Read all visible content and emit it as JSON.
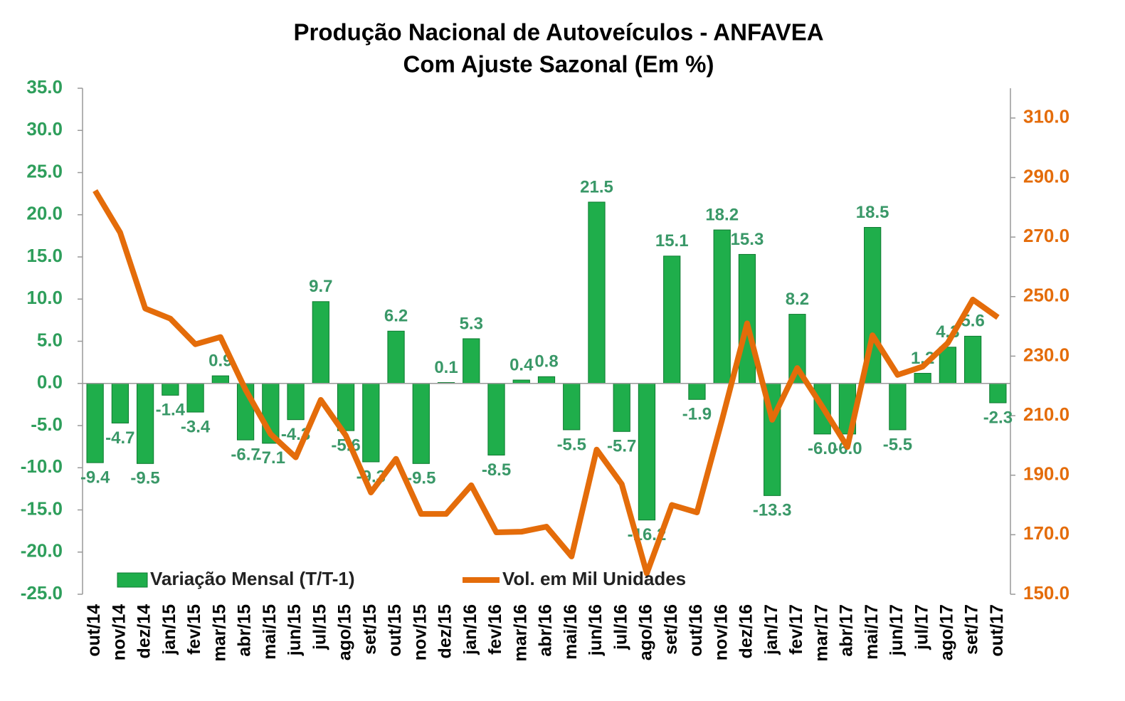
{
  "chart_data": {
    "type": "bar_line",
    "title": "Produção Nacional de Autoveículos - ANFAVEA",
    "subtitle": "Com Ajuste Sazonal (Em %)",
    "categories": [
      "out/14",
      "nov/14",
      "dez/14",
      "jan/15",
      "fev/15",
      "mar/15",
      "abr/15",
      "mai/15",
      "jun/15",
      "jul/15",
      "ago/15",
      "set/15",
      "out/15",
      "nov/15",
      "dez/15",
      "jan/16",
      "fev/16",
      "mar/16",
      "abr/16",
      "mai/16",
      "jun/16",
      "jul/16",
      "ago/16",
      "set/16",
      "out/16",
      "nov/16",
      "dez/16",
      "jan/17",
      "fev/17",
      "mar/17",
      "abr/17",
      "mai/17",
      "jun/17",
      "jul/17",
      "ago/17",
      "set/17",
      "out/17"
    ],
    "series": [
      {
        "name": "Variação Mensal (T/T-1)",
        "type": "bar",
        "color": "#1fae4b",
        "values": [
          -9.4,
          -4.7,
          -9.5,
          -1.4,
          -3.4,
          0.9,
          -6.7,
          -7.1,
          -4.3,
          9.7,
          -5.6,
          -9.3,
          6.2,
          -9.5,
          0.1,
          5.3,
          -8.5,
          0.4,
          0.8,
          -5.5,
          21.5,
          -5.7,
          -16.2,
          15.1,
          -1.9,
          18.2,
          15.3,
          -13.3,
          8.2,
          -6.0,
          -6.0,
          18.5,
          -5.5,
          1.2,
          4.3,
          5.6,
          -2.3
        ],
        "value_labels": [
          "-9.4",
          "-4.7",
          "-9.5",
          "-1.4",
          "-3.4",
          "0.9",
          "-6.7",
          "-7.1",
          "-4.3",
          "9.7",
          "-5.6",
          "-9.3",
          "6.2",
          "-9.5",
          "0.1",
          "5.3",
          "-8.5",
          "0.4",
          "0.8",
          "-5.5",
          "21.5",
          "-5.7",
          "-16.2",
          "15.1",
          "-1.9",
          "18.2",
          "15.3",
          "-13.3",
          "8.2",
          "-6.0",
          "-6.0",
          "18.5",
          "-5.5",
          "1.2",
          "4.3",
          "5.6",
          "-2.3"
        ]
      },
      {
        "name": "Vol. em Mil Unidades",
        "type": "line",
        "color": "#e46c0a",
        "axis": "y2",
        "values": [
          285.6,
          271.5,
          246,
          242.6,
          234,
          236.4,
          218.7,
          203.8,
          196,
          215.3,
          203.3,
          184.2,
          195.5,
          177,
          177,
          186.6,
          170.8,
          171,
          172.7,
          162.7,
          198.6,
          187,
          157,
          180,
          177.5,
          208.6,
          241,
          208.6,
          226,
          213,
          199.5,
          237,
          223.7,
          226.5,
          234.4,
          249,
          243
        ]
      }
    ],
    "ylim": [
      -25,
      35
    ],
    "yticks": [
      {
        "value": -25,
        "label": "-25.0"
      },
      {
        "value": -20,
        "label": "-20.0"
      },
      {
        "value": -15,
        "label": "-15.0"
      },
      {
        "value": -10,
        "label": "-10.0"
      },
      {
        "value": -5,
        "label": "-5.0"
      },
      {
        "value": 0,
        "label": "0.0"
      },
      {
        "value": 5,
        "label": "5.0"
      },
      {
        "value": 10,
        "label": "10.0"
      },
      {
        "value": 15,
        "label": "15.0"
      },
      {
        "value": 20,
        "label": "20.0"
      },
      {
        "value": 25,
        "label": "25.0"
      },
      {
        "value": 30,
        "label": "30.0"
      },
      {
        "value": 35,
        "label": "35.0"
      }
    ],
    "y2lim": [
      150,
      320
    ],
    "y2ticks": [
      {
        "value": 150,
        "label": "150.0"
      },
      {
        "value": 170,
        "label": "170.0"
      },
      {
        "value": 190,
        "label": "190.0"
      },
      {
        "value": 210,
        "label": "210.0"
      },
      {
        "value": 230,
        "label": "230.0"
      },
      {
        "value": 250,
        "label": "250.0"
      },
      {
        "value": 270,
        "label": "270.0"
      },
      {
        "value": 290,
        "label": "290.0"
      },
      {
        "value": 310,
        "label": "310.0"
      }
    ],
    "ytick_color": "#2e9e5b",
    "y2tick_color": "#e46c0a",
    "label_color": "#3a9868",
    "legend": "bottom"
  }
}
